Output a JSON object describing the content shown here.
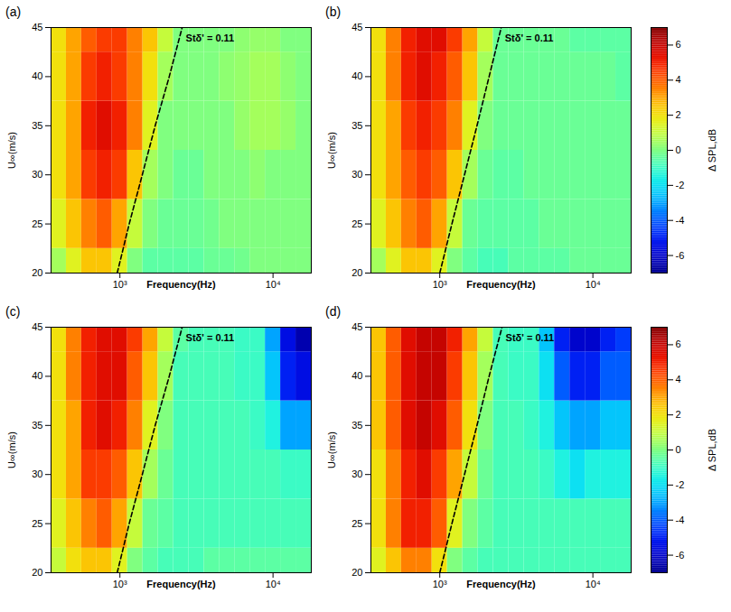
{
  "chart_data": {
    "type": "heatmap",
    "x_label": "Frequency(Hz)",
    "y_label": "U∞(m/s)",
    "log": "x",
    "grid": false,
    "xlim": [
      355,
      17783
    ],
    "ylim": [
      20,
      45
    ],
    "xticks": [
      {
        "value": 1000,
        "label": "10³"
      },
      {
        "value": 10000,
        "label": "10⁴"
      }
    ],
    "yticks": [
      20,
      25,
      30,
      35,
      40,
      45
    ],
    "x_edges": [
      355,
      447,
      562,
      708,
      891,
      1122,
      1413,
      1778,
      2239,
      2818,
      3548,
      4467,
      5623,
      7079,
      8913,
      11220,
      14125,
      17783
    ],
    "y_edges": [
      20,
      22.5,
      27.5,
      32.5,
      37.5,
      42.5,
      45
    ],
    "colorbar": {
      "label": "Δ SPL,dB",
      "range": [
        -7,
        7
      ],
      "ticks": [
        -6,
        -4,
        -2,
        0,
        2,
        4,
        6
      ]
    },
    "panels": [
      {
        "label": "(a)",
        "reference_line": {
          "label": "Stδ' = 0.11",
          "x": [
            960,
            1150,
            1400,
            1700,
            2100,
            2550
          ],
          "y": [
            20,
            25,
            30,
            35,
            40,
            45
          ]
        },
        "values": [
          [
            0.5,
            1.5,
            2.5,
            2.5,
            1.5,
            0,
            -0.5,
            -0.5,
            -0.5,
            -0.5,
            -0.3,
            -0.3,
            -0.2,
            0,
            0,
            0,
            0
          ],
          [
            1.5,
            2.5,
            3.5,
            4,
            3,
            1,
            0,
            -0.3,
            -0.3,
            -0.3,
            -0.2,
            0,
            0,
            0,
            0,
            0,
            0
          ],
          [
            2,
            3,
            4.5,
            5,
            4.5,
            2.5,
            0.5,
            0,
            -0.3,
            -0.3,
            0,
            0,
            0,
            0.2,
            0,
            0,
            0
          ],
          [
            2,
            3,
            5,
            5.5,
            5,
            3.5,
            1.5,
            0,
            0,
            0,
            0,
            0,
            0.3,
            0.5,
            0.5,
            0.3,
            0
          ],
          [
            2,
            3,
            4.5,
            5,
            4.5,
            3.5,
            2,
            0.5,
            0,
            0,
            0,
            0.2,
            0.3,
            0.5,
            0.5,
            0.2,
            0
          ],
          [
            2,
            3,
            4,
            4.5,
            4.5,
            3.5,
            2.5,
            1,
            0,
            0,
            0,
            0,
            0.2,
            0.3,
            0.3,
            0,
            0
          ]
        ]
      },
      {
        "label": "(b)",
        "reference_line": {
          "label": "Stδ' = 0.11",
          "x": [
            1000,
            1200,
            1450,
            1750,
            2100,
            2520
          ],
          "y": [
            20,
            25,
            30,
            35,
            40,
            45
          ]
        },
        "values": [
          [
            0.5,
            1.5,
            2.5,
            2.5,
            1.5,
            0,
            -0.5,
            -0.8,
            -0.8,
            -0.5,
            -0.5,
            -0.5,
            -0.5,
            -0.3,
            -0.3,
            -0.3,
            -0.3
          ],
          [
            1.5,
            2.5,
            3.5,
            4,
            3,
            1,
            -0.3,
            -0.5,
            -0.5,
            -0.5,
            -0.5,
            -0.3,
            -0.3,
            -0.3,
            -0.3,
            -0.3,
            -0.3
          ],
          [
            2,
            3,
            4,
            4.5,
            4,
            2.5,
            0.5,
            -0.3,
            -0.5,
            -0.5,
            -0.3,
            -0.3,
            -0.3,
            -0.3,
            -0.3,
            -0.3,
            -0.3
          ],
          [
            2,
            3,
            4.5,
            5,
            4.5,
            3.5,
            1.5,
            0,
            -0.3,
            -0.3,
            -0.3,
            -0.3,
            -0.3,
            -0.3,
            -0.3,
            -0.3,
            -0.3
          ],
          [
            2,
            3.5,
            5,
            5.5,
            5,
            4,
            2.5,
            0.5,
            -0.3,
            -0.3,
            -0.3,
            -0.3,
            -0.3,
            -0.3,
            -0.3,
            -0.3,
            -0.5
          ],
          [
            2,
            3.5,
            5,
            5.5,
            5.5,
            4.5,
            3,
            1,
            -0.3,
            -0.3,
            -0.3,
            -0.3,
            -0.3,
            -0.5,
            -0.5,
            -0.5,
            -0.5
          ]
        ]
      },
      {
        "label": "(c)",
        "reference_line": {
          "label": "Stδ' = 0.11",
          "x": [
            960,
            1150,
            1400,
            1700,
            2100,
            2550
          ],
          "y": [
            20,
            25,
            30,
            35,
            40,
            45
          ]
        },
        "values": [
          [
            1,
            2,
            2.5,
            2.5,
            1.5,
            0,
            -0.5,
            -0.8,
            -0.8,
            -0.8,
            -0.5,
            -0.5,
            -0.5,
            -0.5,
            -0.5,
            -0.5,
            -0.5
          ],
          [
            1.5,
            2.5,
            3.5,
            4,
            3,
            1,
            -0.3,
            -0.5,
            -0.8,
            -0.8,
            -0.8,
            -0.8,
            -0.8,
            -0.8,
            -0.8,
            -0.8,
            -0.8
          ],
          [
            2,
            3,
            4.5,
            4.5,
            4,
            2.5,
            0.5,
            -0.3,
            -0.8,
            -0.8,
            -0.8,
            -0.8,
            -0.8,
            -0.8,
            -0.8,
            -1,
            -1
          ],
          [
            2,
            3,
            5,
            5.5,
            5,
            3.5,
            1.5,
            0,
            -0.8,
            -0.8,
            -0.8,
            -0.8,
            -0.8,
            -1,
            -1.5,
            -3,
            -3
          ],
          [
            2,
            3.5,
            5,
            5.5,
            5.5,
            4,
            2.5,
            0.5,
            -0.8,
            -0.8,
            -0.8,
            -0.8,
            -1,
            -1,
            -2.5,
            -5,
            -5.5
          ],
          [
            2,
            3.5,
            5,
            5.5,
            5.5,
            4.5,
            3,
            1,
            -0.5,
            -0.8,
            -0.8,
            -0.8,
            -1,
            -1,
            -3,
            -5.5,
            -6.5
          ]
        ]
      },
      {
        "label": "(d)",
        "reference_line": {
          "label": "Stδ' = 0.11",
          "x": [
            1000,
            1200,
            1450,
            1750,
            2100,
            2550
          ],
          "y": [
            20,
            25,
            30,
            35,
            40,
            45
          ]
        },
        "values": [
          [
            1.5,
            2.5,
            3.5,
            3.5,
            2,
            0,
            -0.5,
            -0.8,
            -0.8,
            -0.8,
            -0.8,
            -0.8,
            -0.8,
            -0.8,
            -0.8,
            -0.8,
            -0.8
          ],
          [
            2,
            3.5,
            5,
            5,
            4,
            1.5,
            0,
            -0.5,
            -0.8,
            -0.8,
            -0.8,
            -0.8,
            -0.8,
            -0.8,
            -0.8,
            -0.8,
            -0.8
          ],
          [
            2,
            3.5,
            5,
            5.5,
            4.5,
            3,
            1,
            -0.3,
            -0.8,
            -0.8,
            -0.8,
            -1,
            -1.5,
            -2,
            -1.5,
            -1.5,
            -1.5
          ],
          [
            2.5,
            4,
            5.5,
            6,
            5.5,
            4,
            2,
            0,
            -0.8,
            -0.8,
            -1,
            -1.5,
            -2.5,
            -3,
            -3,
            -2.5,
            -2.5
          ],
          [
            2.5,
            4,
            5.5,
            6,
            6,
            4.5,
            2.5,
            0.5,
            -0.8,
            -1,
            -1,
            -2,
            -4,
            -5,
            -5,
            -4,
            -4
          ],
          [
            2.5,
            4,
            5.5,
            6,
            6,
            5,
            3,
            1,
            -0.8,
            -1,
            -1,
            -2.5,
            -5,
            -6,
            -6,
            -5,
            -4.5
          ]
        ]
      }
    ]
  }
}
